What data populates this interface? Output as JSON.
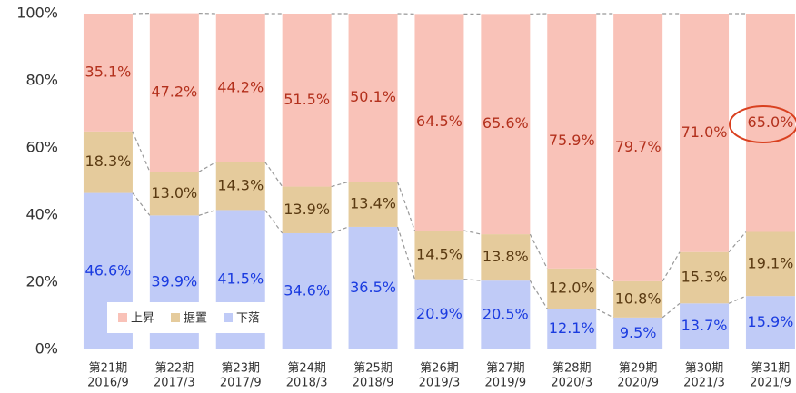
{
  "chart_data": {
    "type": "stacked_bar_100",
    "categories": [
      [
        "第21期",
        "2016/9"
      ],
      [
        "第22期",
        "2017/3"
      ],
      [
        "第23期",
        "2017/9"
      ],
      [
        "第24期",
        "2018/3"
      ],
      [
        "第25期",
        "2018/9"
      ],
      [
        "第26期",
        "2019/3"
      ],
      [
        "第27期",
        "2019/9"
      ],
      [
        "第28期",
        "2020/3"
      ],
      [
        "第29期",
        "2020/9"
      ],
      [
        "第30期",
        "2021/3"
      ],
      [
        "第31期",
        "2021/9"
      ]
    ],
    "series": [
      {
        "name": "下落",
        "color": "#c0cbf7",
        "label_color": "#1a3be0",
        "values": [
          46.6,
          39.9,
          41.5,
          34.6,
          36.5,
          20.9,
          20.5,
          12.1,
          9.5,
          13.7,
          15.9
        ],
        "value_labels": [
          "46.6%",
          "39.9%",
          "41.5%",
          "34.6%",
          "36.5%",
          "20.9%",
          "20.5%",
          "12.1%",
          "9.5%",
          "13.7%",
          "15.9%"
        ]
      },
      {
        "name": "据置",
        "color": "#e5cb9c",
        "label_color": "#5a3a12",
        "values": [
          18.3,
          13.0,
          14.3,
          13.9,
          13.4,
          14.5,
          13.8,
          12.0,
          10.8,
          15.3,
          19.1
        ],
        "value_labels": [
          "18.3%",
          "13.0%",
          "14.3%",
          "13.9%",
          "13.4%",
          "14.5%",
          "13.8%",
          "12.0%",
          "10.8%",
          "15.3%",
          "19.1%"
        ]
      },
      {
        "name": "上昇",
        "color": "#f9c2b8",
        "label_color": "#b3301c",
        "values": [
          35.1,
          47.2,
          44.2,
          51.5,
          50.1,
          64.5,
          65.6,
          75.9,
          79.7,
          71.0,
          65.0
        ],
        "value_labels": [
          "35.1%",
          "47.2%",
          "44.2%",
          "51.5%",
          "50.1%",
          "64.5%",
          "65.6%",
          "75.9%",
          "79.7%",
          "71.0%",
          "65.0%"
        ]
      }
    ],
    "ylim": [
      0,
      100
    ],
    "yticks": [
      {
        "value": 0,
        "label": "0%"
      },
      {
        "value": 20,
        "label": "20%"
      },
      {
        "value": 40,
        "label": "40%"
      },
      {
        "value": 60,
        "label": "60%"
      },
      {
        "value": 80,
        "label": "80%"
      },
      {
        "value": 100,
        "label": "100%"
      }
    ],
    "legend": "inside-bottom-left"
  }
}
